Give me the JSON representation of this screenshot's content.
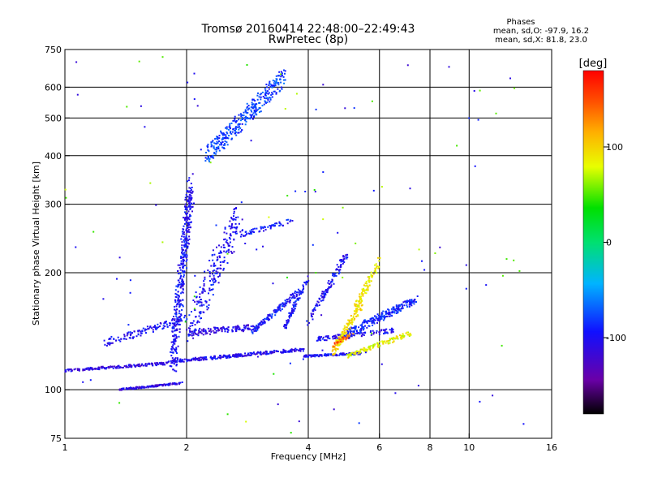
{
  "header": {
    "title": "Tromsø 20160414 22:48:00–22:49:43",
    "subtitle": "RwPretec (8p)",
    "phases_heading": "Phases",
    "phases_o": "mean, sd,O: -97.9, 16.2",
    "phases_x": "mean, sd,X:  81.8, 23.0"
  },
  "chart_data": {
    "type": "scatter",
    "xlabel": "Frequency [MHz]",
    "ylabel": "Stationary phase Virtual Height [km]",
    "x_scale": "log",
    "y_scale": "log",
    "xlim": [
      1,
      16
    ],
    "ylim": [
      75,
      750
    ],
    "x_ticks": [
      1,
      2,
      4,
      6,
      8,
      10,
      16
    ],
    "y_ticks": [
      75,
      100,
      200,
      300,
      400,
      500,
      600,
      750
    ],
    "x_gridlines": [
      2,
      4,
      6,
      8,
      10
    ],
    "y_gridlines": [
      100,
      200,
      300,
      400,
      500,
      600
    ],
    "colorbar": {
      "label": "[deg]",
      "range": [
        -180,
        180
      ],
      "ticks": [
        -100,
        0,
        100
      ],
      "colors": [
        "#000000",
        "#6a00a8",
        "#1010ff",
        "#00b4ff",
        "#00e070",
        "#00e000",
        "#e8ff00",
        "#ffb000",
        "#ff5000",
        "#ff0000"
      ]
    },
    "series": [
      {
        "trace": "o-low-layer",
        "f": [
          1.0,
          1.8
        ],
        "h": [
          112,
          117
        ],
        "phase": -110,
        "n": 160,
        "spread": 0.012
      },
      {
        "trace": "o-low-layer-main",
        "f": [
          1.8,
          3.9
        ],
        "h": [
          118,
          127
        ],
        "phase": -105,
        "n": 260,
        "spread": 0.014
      },
      {
        "trace": "o-low-layer-far",
        "f": [
          3.9,
          5.4
        ],
        "h": [
          122,
          124
        ],
        "phase": -100,
        "n": 120,
        "spread": 0.01
      },
      {
        "trace": "o-sporadic-100",
        "f": [
          1.35,
          1.95
        ],
        "h": [
          100,
          104
        ],
        "phase": -110,
        "n": 150,
        "spread": 0.008
      },
      {
        "trace": "o-upper-trace",
        "f": [
          1.25,
          2.0
        ],
        "h": [
          132,
          152
        ],
        "phase": -100,
        "n": 120,
        "spread": 0.03
      },
      {
        "trace": "o-upper-trace-2",
        "f": [
          2.0,
          3.0
        ],
        "h": [
          140,
          145
        ],
        "phase": -110,
        "n": 120,
        "spread": 0.03
      },
      {
        "trace": "o-cusp-vertical",
        "f": [
          1.85,
          2.05
        ],
        "h": [
          120,
          330
        ],
        "phase": -100,
        "n": 420,
        "spread": 0.06
      },
      {
        "trace": "o-cusp-spread",
        "f": [
          2.05,
          2.7
        ],
        "h": [
          145,
          280
        ],
        "phase": -100,
        "n": 240,
        "spread": 0.08
      },
      {
        "trace": "o-rising-1",
        "f": [
          2.9,
          3.8
        ],
        "h": [
          140,
          180
        ],
        "phase": -95,
        "n": 130,
        "spread": 0.02
      },
      {
        "trace": "o-rising-2",
        "f": [
          3.5,
          4.0
        ],
        "h": [
          145,
          195
        ],
        "phase": -95,
        "n": 90,
        "spread": 0.02
      },
      {
        "trace": "o-f-layer-rise",
        "f": [
          4.0,
          5.0
        ],
        "h": [
          150,
          225
        ],
        "phase": -100,
        "n": 120,
        "spread": 0.03
      },
      {
        "trace": "o-f-layer-main",
        "f": [
          5.0,
          7.4
        ],
        "h": [
          140,
          170
        ],
        "phase": -90,
        "n": 220,
        "spread": 0.03
      },
      {
        "trace": "o-f-layer-low",
        "f": [
          4.2,
          6.5
        ],
        "h": [
          135,
          142
        ],
        "phase": -100,
        "n": 120,
        "spread": 0.02
      },
      {
        "trace": "echo-400-600",
        "f": [
          2.25,
          3.5
        ],
        "h": [
          400,
          640
        ],
        "phase": -80,
        "n": 340,
        "spread": 0.05
      },
      {
        "trace": "echo-250-275",
        "f": [
          2.7,
          3.8
        ],
        "h": [
          250,
          275
        ],
        "phase": -90,
        "n": 60,
        "spread": 0.02
      },
      {
        "trace": "x-trace-yellow",
        "f": [
          4.6,
          5.4
        ],
        "h": [
          125,
          165
        ],
        "phase": 95,
        "n": 130,
        "spread": 0.03
      },
      {
        "trace": "x-trace-yellow-high",
        "f": [
          5.2,
          6.0
        ],
        "h": [
          160,
          215
        ],
        "phase": 90,
        "n": 90,
        "spread": 0.03
      },
      {
        "trace": "x-trace-yellow-low",
        "f": [
          5.0,
          7.2
        ],
        "h": [
          122,
          140
        ],
        "phase": 85,
        "n": 120,
        "spread": 0.02
      },
      {
        "trace": "x-trace-orange",
        "f": [
          4.6,
          5.2
        ],
        "h": [
          130,
          140
        ],
        "phase": 140,
        "n": 40,
        "spread": 0.02
      },
      {
        "trace": "stray-bright",
        "f": [
          1.0,
          14.0
        ],
        "h": [
          75,
          720
        ],
        "phase": 60,
        "n": 45,
        "spread": 0.0
      },
      {
        "trace": "stray-blue",
        "f": [
          1.0,
          14.0
        ],
        "h": [
          80,
          700
        ],
        "phase": -100,
        "n": 70,
        "spread": 0.0
      }
    ]
  }
}
